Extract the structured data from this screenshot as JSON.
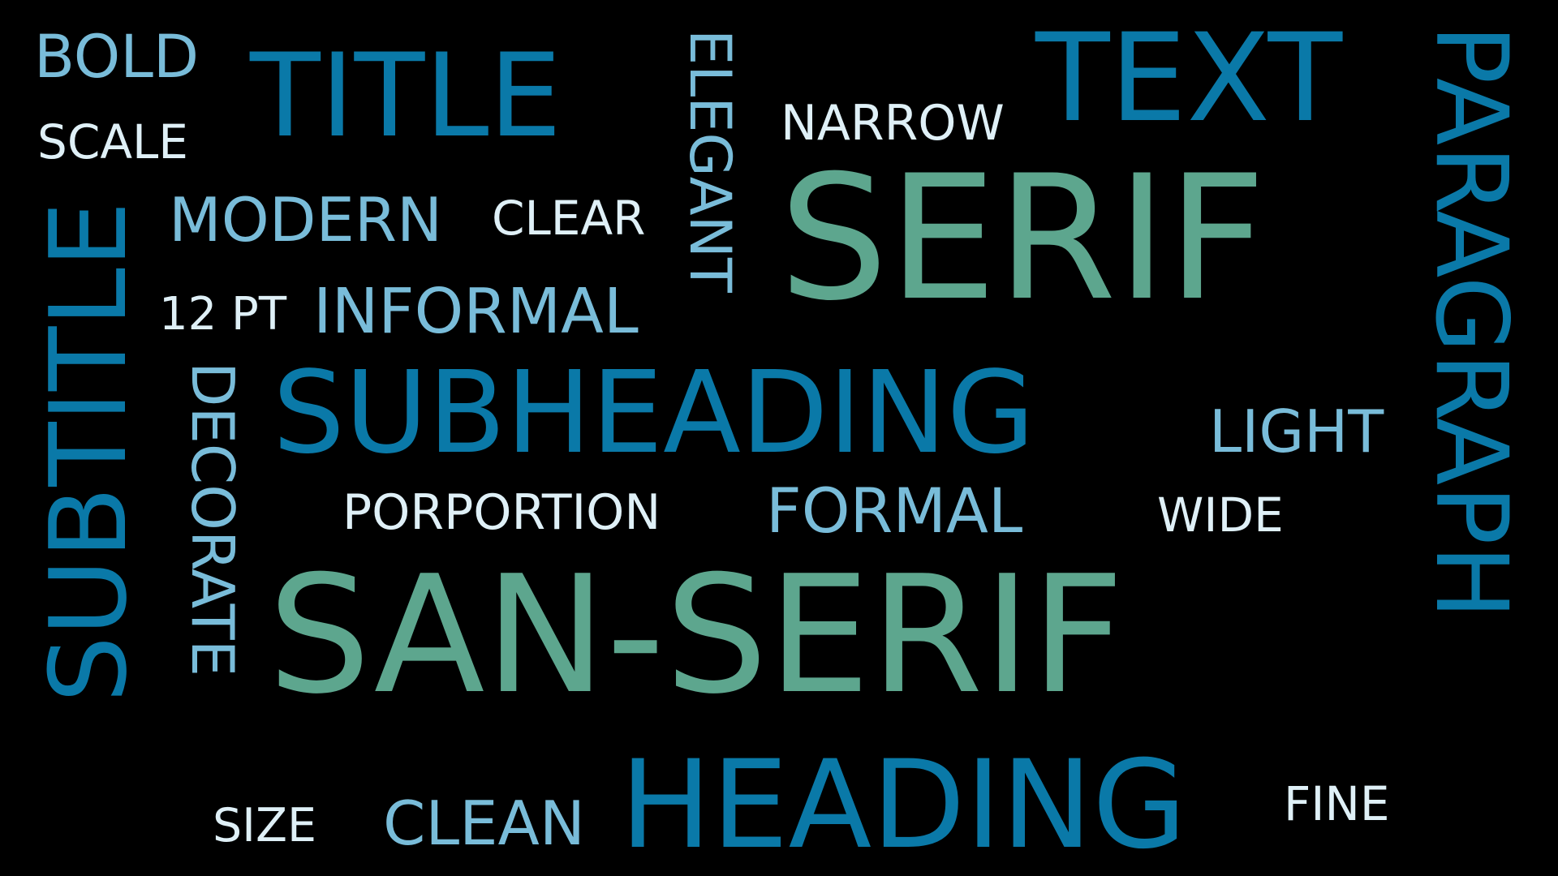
{
  "colors": {
    "background": "#000000",
    "blue": "#0a79a8",
    "green": "#5da68e",
    "light_blue": "#79bcd9",
    "pale": "#dff0f7"
  },
  "words": {
    "bold": "BOLD",
    "title": "TITLE",
    "elegant": "ELEGANT",
    "text": "TEXT",
    "paragraph": "PARAGRAPH",
    "scale": "SCALE",
    "narrow": "NARROW",
    "serif": "SERIF",
    "modern": "MODERN",
    "clear": "CLEAR",
    "subtitle": "SUBTITLE",
    "pt12": "12 PT",
    "informal": "INFORMAL",
    "decorate": "DECORATE",
    "subheading": "SUBHEADING",
    "light": "LIGHT",
    "porportion": "PORPORTION",
    "formal": "FORMAL",
    "wide": "WIDE",
    "san_serif": "SAN-SERIF",
    "size": "SIZE",
    "clean": "CLEAN",
    "heading": "HEADING",
    "fine": "FINE"
  }
}
